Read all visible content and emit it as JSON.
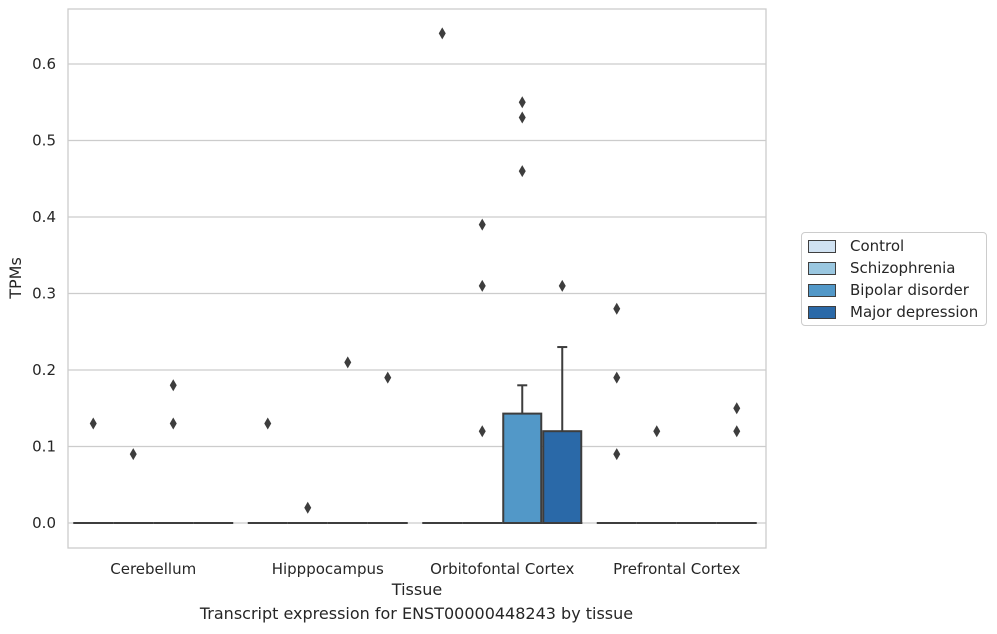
{
  "chart_data": {
    "type": "box",
    "title": "",
    "caption": "Transcript expression for ENST00000448243 by tissue",
    "xlabel": "Tissue",
    "ylabel": "TPMs",
    "ylim": [
      -0.032,
      0.673
    ],
    "yticks": [
      0.0,
      0.1,
      0.2,
      0.3,
      0.4,
      0.5,
      0.6
    ],
    "ytick_labels": [
      "0.0",
      "0.1",
      "0.2",
      "0.3",
      "0.4",
      "0.5",
      "0.6"
    ],
    "grid": "horizontal",
    "legend_position": "right",
    "categories": [
      "Cerebellum",
      "Hipppocampus",
      "Orbitofontal Cortex",
      "Prefrontal Cortex"
    ],
    "series": [
      {
        "name": "Control",
        "color": "#d0e2f2",
        "boxes": [
          {
            "q1": 0,
            "median": 0,
            "q3": 0,
            "whisker_low": 0,
            "whisker_high": 0,
            "outliers": [
              0.13
            ]
          },
          {
            "q1": 0,
            "median": 0,
            "q3": 0,
            "whisker_low": 0,
            "whisker_high": 0,
            "outliers": [
              0.13
            ]
          },
          {
            "q1": 0,
            "median": 0,
            "q3": 0,
            "whisker_low": 0,
            "whisker_high": 0,
            "outliers": [
              0.64
            ]
          },
          {
            "q1": 0,
            "median": 0,
            "q3": 0,
            "whisker_low": 0,
            "whisker_high": 0,
            "outliers": [
              0.28,
              0.19,
              0.09
            ]
          }
        ]
      },
      {
        "name": "Schizophrenia",
        "color": "#9ac7e0",
        "boxes": [
          {
            "q1": 0,
            "median": 0,
            "q3": 0,
            "whisker_low": 0,
            "whisker_high": 0,
            "outliers": [
              0.09
            ]
          },
          {
            "q1": 0,
            "median": 0,
            "q3": 0,
            "whisker_low": 0,
            "whisker_high": 0,
            "outliers": [
              0.02
            ]
          },
          {
            "q1": 0,
            "median": 0,
            "q3": 0,
            "whisker_low": 0,
            "whisker_high": 0,
            "outliers": [
              0.39,
              0.31,
              0.12
            ]
          },
          {
            "q1": 0,
            "median": 0,
            "q3": 0,
            "whisker_low": 0,
            "whisker_high": 0,
            "outliers": [
              0.12
            ]
          }
        ]
      },
      {
        "name": "Bipolar disorder",
        "color": "#5298c8",
        "boxes": [
          {
            "q1": 0,
            "median": 0,
            "q3": 0,
            "whisker_low": 0,
            "whisker_high": 0,
            "outliers": [
              0.18,
              0.13
            ]
          },
          {
            "q1": 0,
            "median": 0,
            "q3": 0,
            "whisker_low": 0,
            "whisker_high": 0,
            "outliers": [
              0.21
            ]
          },
          {
            "q1": 0,
            "median": 0,
            "q3": 0.143,
            "whisker_low": 0,
            "whisker_high": 0.18,
            "outliers": [
              0.55,
              0.53,
              0.46
            ]
          },
          {
            "q1": 0,
            "median": 0,
            "q3": 0,
            "whisker_low": 0,
            "whisker_high": 0,
            "outliers": []
          }
        ]
      },
      {
        "name": "Major depression",
        "color": "#2a69a8",
        "boxes": [
          {
            "q1": 0,
            "median": 0,
            "q3": 0,
            "whisker_low": 0,
            "whisker_high": 0,
            "outliers": []
          },
          {
            "q1": 0,
            "median": 0,
            "q3": 0,
            "whisker_low": 0,
            "whisker_high": 0,
            "outliers": [
              0.19
            ]
          },
          {
            "q1": 0,
            "median": 0,
            "q3": 0.12,
            "whisker_low": 0,
            "whisker_high": 0.23,
            "outliers": [
              0.31
            ]
          },
          {
            "q1": 0,
            "median": 0,
            "q3": 0,
            "whisker_low": 0,
            "whisker_high": 0,
            "outliers": [
              0.15,
              0.12
            ]
          }
        ]
      }
    ]
  }
}
